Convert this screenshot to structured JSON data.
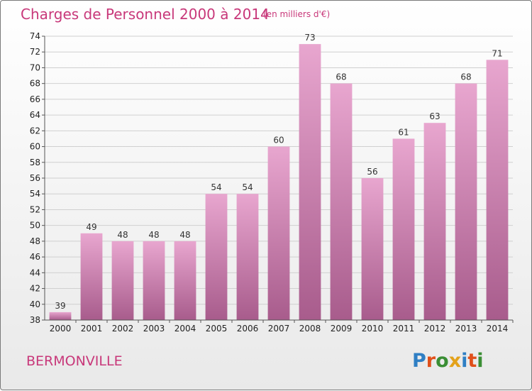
{
  "header": {
    "title": "Charges de Personnel 2000 à 2014",
    "subtitle": "(en milliers d'€)"
  },
  "footer": {
    "city": "BERMONVILLE",
    "logo": [
      "P",
      "r",
      "o",
      "x",
      "i",
      "t",
      "i"
    ]
  },
  "colors": {
    "accent": "#c8387a",
    "bar_top": "#e8a6cf",
    "bar_bottom": "#a85c8c",
    "logo": [
      "#2f7fc4",
      "#e0501a",
      "#3a8e34",
      "#e3a21a",
      "#2f7fc4",
      "#e0501a",
      "#3a8e34"
    ]
  },
  "chart_data": {
    "type": "bar",
    "title": "Charges de Personnel 2000 à 2014",
    "subtitle": "(en milliers d'€)",
    "categories": [
      "2000",
      "2001",
      "2002",
      "2003",
      "2004",
      "2005",
      "2006",
      "2007",
      "2008",
      "2009",
      "2010",
      "2011",
      "2012",
      "2013",
      "2014"
    ],
    "values": [
      39,
      49,
      48,
      48,
      48,
      54,
      54,
      60,
      73,
      68,
      56,
      61,
      63,
      68,
      71
    ],
    "ylim": [
      38,
      74
    ],
    "yticks": [
      38,
      40,
      42,
      44,
      46,
      48,
      50,
      52,
      54,
      56,
      58,
      60,
      62,
      64,
      66,
      68,
      70,
      72,
      74
    ],
    "grid": true
  }
}
